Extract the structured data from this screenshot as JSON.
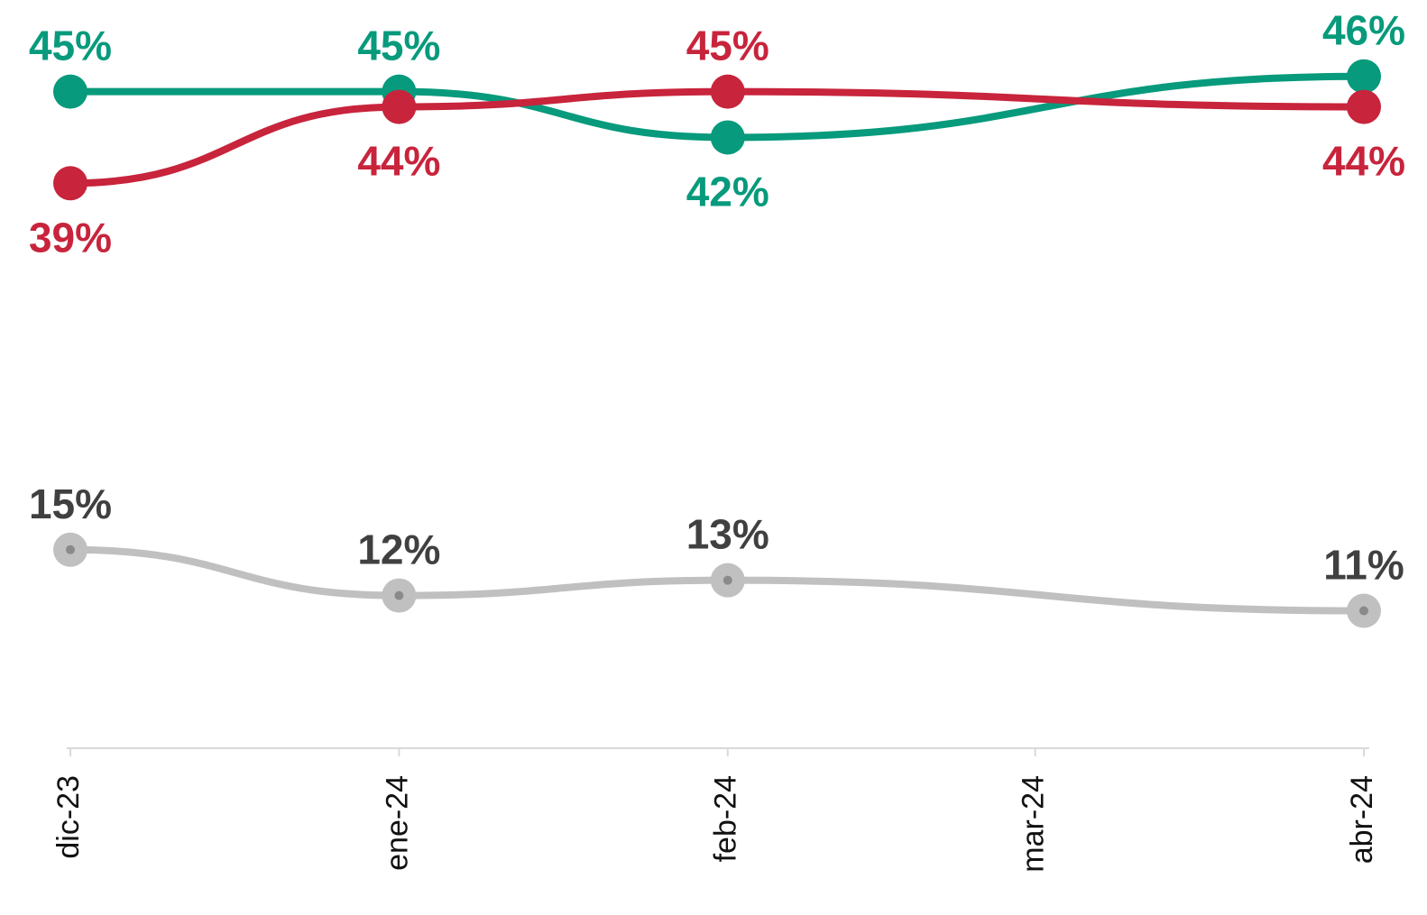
{
  "chart_data": {
    "type": "line",
    "x": [
      "2023-12",
      "2024-01",
      "2024-02",
      "2024-04"
    ],
    "xlim": [
      "2023-12",
      "2024-04"
    ],
    "xticks": [
      {
        "value": "2023-12",
        "label": "dic-23"
      },
      {
        "value": "2024-01",
        "label": "ene-24"
      },
      {
        "value": "2024-02",
        "label": "feb-24"
      },
      {
        "value": "2024-03",
        "label": "mar-24"
      },
      {
        "value": "2024-04",
        "label": "abr-24"
      }
    ],
    "ylim": [
      2,
      51
    ],
    "series": [
      {
        "color": "#079a7c",
        "label_color": "#079a7c",
        "values": [
          45,
          45,
          42,
          46
        ],
        "value_labels": [
          "45%",
          "45%",
          "42%",
          "46%"
        ]
      },
      {
        "color": "#c8243c",
        "label_color": "#c8243c",
        "values": [
          39,
          44,
          45,
          44
        ],
        "value_labels": [
          "39%",
          "44%",
          "45%",
          "44%"
        ]
      },
      {
        "color": "#c0c0c0",
        "label_color": "#404040",
        "values": [
          15,
          12,
          13,
          11
        ],
        "value_labels": [
          "15%",
          "12%",
          "13%",
          "11%"
        ]
      }
    ]
  }
}
